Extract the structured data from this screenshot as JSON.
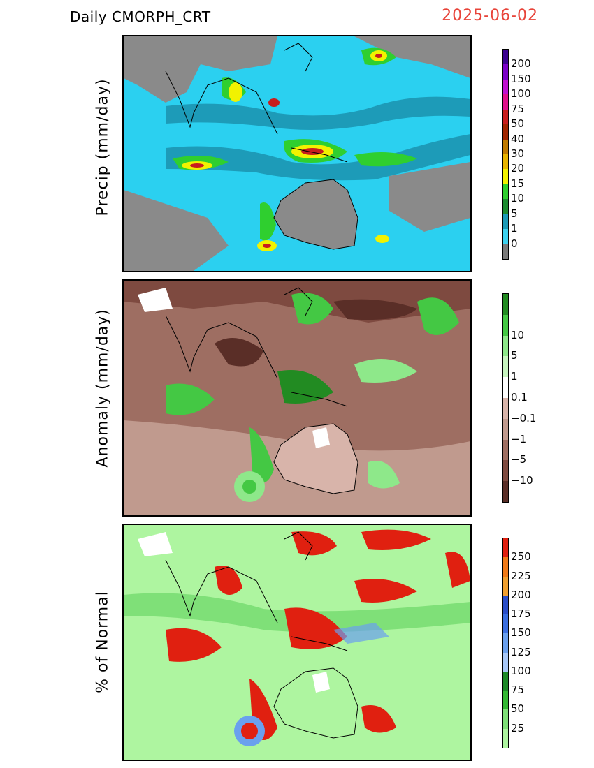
{
  "header": {
    "title": "Daily  CMORPH_CRT",
    "date": "2025-06-02"
  },
  "panels": [
    {
      "label": "Precip  (mm/day)",
      "colorbar": {
        "colors": [
          "#7a7a7a",
          "#3cd2f0",
          "#1d9bb8",
          "#1c8c30",
          "#2fcf2f",
          "#f2f200",
          "#e8b400",
          "#c07a00",
          "#a02500",
          "#c81e1e",
          "#e0108c",
          "#c010d0",
          "#7a00c8",
          "#3a0090"
        ],
        "ticks": [
          "0",
          "1",
          "5",
          "10",
          "15",
          "20",
          "30",
          "40",
          "50",
          "75",
          "100",
          "150",
          "200"
        ]
      }
    },
    {
      "label": "Anomaly  (mm/day)",
      "colorbar": {
        "colors": [
          "#5a2e27",
          "#7e4a40",
          "#9e6e62",
          "#c09a8e",
          "#d8b4aa",
          "#ffffff",
          "#c8f5c0",
          "#8ee88a",
          "#44c844",
          "#228b22"
        ],
        "ticks": [
          "−10",
          "−5",
          "−1",
          "−0.1",
          "0.1",
          "1",
          "5",
          "10"
        ]
      }
    },
    {
      "label": "%  of  Normal",
      "colorbar": {
        "colors": [
          "#aef5a0",
          "#7fe078",
          "#34b834",
          "#1d8a28",
          "#a8c8f8",
          "#6aa0ee",
          "#3a6ee0",
          "#2a4ec8",
          "#f0a030",
          "#f07a18",
          "#e02010"
        ],
        "ticks": [
          "25",
          "50",
          "75",
          "100",
          "125",
          "150",
          "175",
          "200",
          "225",
          "250"
        ]
      }
    }
  ]
}
